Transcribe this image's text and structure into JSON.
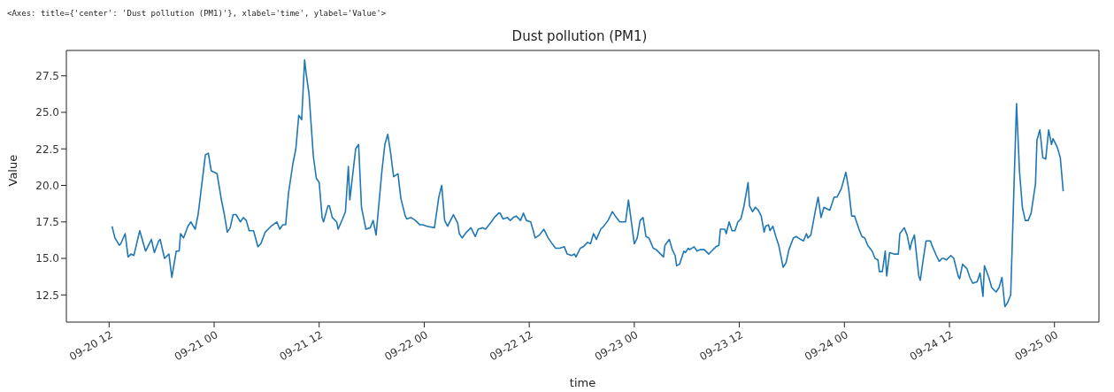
{
  "chart_data": {
    "type": "line",
    "title": "Dust pollution (PM1)",
    "xlabel": "time",
    "ylabel": "Value",
    "annotations": [
      "<Axes: title={'center': 'Dust pollution (PM1)'}, xlabel='time', ylabel='Value'>"
    ],
    "x": [
      "--09-20T12:20",
      "--09-20T12:40",
      "--09-20T13:10",
      "--09-20T13:20",
      "--09-20T13:50",
      "--09-20T14:10",
      "--09-20T14:30",
      "--09-20T14:50",
      "--09-20T15:30",
      "--09-20T16:10",
      "--09-20T16:50",
      "--09-20T17:10",
      "--09-20T17:40",
      "--09-20T17:50",
      "--09-20T18:20",
      "--09-20T18:50",
      "--09-20T19:10",
      "--09-20T19:40",
      "--09-20T20:00",
      "--09-20T20:10",
      "--09-20T20:30",
      "--09-20T21:00",
      "--09-20T21:20",
      "--09-20T21:50",
      "--09-20T22:10",
      "--09-20T22:20",
      "--09-20T23:00",
      "--09-20T23:20",
      "--09-20T23:40",
      "--09-21T00:20",
      "--09-21T00:50",
      "--09-21T01:10",
      "--09-21T01:30",
      "--09-21T01:50",
      "--09-21T02:10",
      "--09-21T02:30",
      "--09-21T03:00",
      "--09-21T03:20",
      "--09-21T03:40",
      "--09-21T04:00",
      "--09-21T04:30",
      "--09-21T05:00",
      "--09-21T05:20",
      "--09-21T05:50",
      "--09-21T06:30",
      "--09-21T07:10",
      "--09-21T07:30",
      "--09-21T07:50",
      "--09-21T08:10",
      "--09-21T08:30",
      "--09-21T09:00",
      "--09-21T09:20",
      "--09-21T09:40",
      "--09-21T10:00",
      "--09-21T10:20",
      "--09-21T10:30",
      "--09-21T10:50",
      "--09-21T11:20",
      "--09-21T11:40",
      "--09-21T12:00",
      "--09-21T12:20",
      "--09-21T12:30",
      "--09-21T13:00",
      "--09-21T13:10",
      "--09-21T13:30",
      "--09-21T14:00",
      "--09-21T14:10",
      "--09-21T14:40",
      "--09-21T15:00",
      "--09-21T15:20",
      "--09-21T15:30",
      "--09-21T16:10",
      "--09-21T16:30",
      "--09-21T16:50",
      "--09-21T17:20",
      "--09-21T17:50",
      "--09-21T18:10",
      "--09-21T18:30",
      "--09-21T19:10",
      "--09-21T19:30",
      "--09-21T19:50",
      "--09-21T20:10",
      "--09-21T20:30",
      "--09-21T21:00",
      "--09-21T21:20",
      "--09-21T21:50",
      "--09-21T22:00",
      "--09-21T22:30",
      "--09-21T23:00",
      "--09-21T23:30",
      "--09-21T23:50",
      "--09-22T00:20",
      "--09-22T01:10",
      "--09-22T01:40",
      "--09-22T02:00",
      "--09-22T02:20",
      "--09-22T02:40",
      "--09-22T03:20",
      "--09-22T03:50",
      "--09-22T04:00",
      "--09-22T04:20",
      "--09-22T04:50",
      "--09-22T05:20",
      "--09-22T05:50",
      "--09-22T06:10",
      "--09-22T06:40",
      "--09-22T07:00",
      "--09-22T07:40",
      "--09-22T08:00",
      "--09-22T08:30",
      "--09-22T08:40",
      "--09-22T09:00",
      "--09-22T09:30",
      "--09-22T09:50",
      "--09-22T10:10",
      "--09-22T10:30",
      "--09-22T11:00",
      "--09-22T11:20",
      "--09-22T11:40",
      "--09-22T12:10",
      "--09-22T12:30",
      "--09-22T12:40",
      "--09-22T13:10",
      "--09-22T13:40",
      "--09-22T14:10",
      "--09-22T14:30",
      "--09-22T15:00",
      "--09-22T15:30",
      "--09-22T16:00",
      "--09-22T16:20",
      "--09-22T16:50",
      "--09-22T17:10",
      "--09-22T17:20",
      "--09-22T17:50",
      "--09-22T18:10",
      "--09-22T18:40",
      "--09-22T19:00",
      "--09-22T19:20",
      "--09-22T19:40",
      "--09-22T20:10",
      "--09-22T20:30",
      "--09-22T21:00",
      "--09-22T21:30",
      "--09-22T21:50",
      "--09-22T22:20",
      "--09-22T22:40",
      "--09-22T23:00",
      "--09-22T23:20",
      "--09-23T00:00",
      "--09-23T00:20",
      "--09-23T00:40",
      "--09-23T01:00",
      "--09-23T01:20",
      "--09-23T01:40",
      "--09-23T02:10",
      "--09-23T02:30",
      "--09-23T03:00",
      "--09-23T03:20",
      "--09-23T03:30",
      "--09-23T04:00",
      "--09-23T04:20",
      "--09-23T04:40",
      "--09-23T04:50",
      "--09-23T05:10",
      "--09-23T05:40",
      "--09-23T05:50",
      "--09-23T06:10",
      "--09-23T06:20",
      "--09-23T06:50",
      "--09-23T07:10",
      "--09-23T07:30",
      "--09-23T08:00",
      "--09-23T08:30",
      "--09-23T08:50",
      "--09-23T09:20",
      "--09-23T09:40",
      "--09-23T09:50",
      "--09-23T10:20",
      "--09-23T10:30",
      "--09-23T10:50",
      "--09-23T11:10",
      "--09-23T11:30",
      "--09-23T11:50",
      "--09-23T12:10",
      "--09-23T12:30",
      "--09-23T13:00",
      "--09-23T13:10",
      "--09-23T13:30",
      "--09-23T13:50",
      "--09-23T14:10",
      "--09-23T14:30",
      "--09-23T14:50",
      "--09-23T15:00",
      "--09-23T15:20",
      "--09-23T15:30",
      "--09-23T15:50",
      "--09-23T16:10",
      "--09-23T16:30",
      "--09-23T17:00",
      "--09-23T17:20",
      "--09-23T17:40",
      "--09-23T18:10",
      "--09-23T18:30",
      "--09-23T19:00",
      "--09-23T19:20",
      "--09-23T19:40",
      "--09-23T19:50",
      "--09-23T20:10",
      "--09-23T20:40",
      "--09-23T21:00",
      "--09-23T21:20",
      "--09-23T21:40",
      "--09-23T22:00",
      "--09-23T22:20",
      "--09-23T22:50",
      "--09-23T23:10",
      "--09-23T23:40",
      "--09-24T00:10",
      "--09-24T00:30",
      "--09-24T00:50",
      "--09-24T01:10",
      "--09-24T01:30",
      "--09-24T01:40",
      "--09-24T02:00",
      "--09-24T02:20",
      "--09-24T02:40",
      "--09-24T03:10",
      "--09-24T03:30",
      "--09-24T03:50",
      "--09-24T04:00",
      "--09-24T04:20",
      "--09-24T04:40",
      "--09-24T04:50",
      "--09-24T05:10",
      "--09-24T05:40",
      "--09-24T06:10",
      "--09-24T06:20",
      "--09-24T06:50",
      "--09-24T07:10",
      "--09-24T07:30",
      "--09-24T07:40",
      "--09-24T08:00",
      "--09-24T08:30",
      "--09-24T08:40",
      "--09-24T09:00",
      "--09-24T09:20",
      "--09-24T09:50",
      "--09-24T10:00",
      "--09-24T10:30",
      "--09-24T10:50",
      "--09-24T11:10",
      "--09-24T11:20",
      "--09-24T11:40",
      "--09-24T12:10",
      "--09-24T12:30",
      "--09-24T13:00",
      "--09-24T13:10",
      "--09-24T13:30",
      "--09-24T14:00",
      "--09-24T14:20",
      "--09-24T14:40",
      "--09-24T15:10",
      "--09-24T15:30",
      "--09-24T15:50",
      "--09-24T16:00",
      "--09-24T16:30",
      "--09-24T16:50",
      "--09-24T17:20",
      "--09-24T17:40",
      "--09-24T18:00",
      "--09-24T18:20",
      "--09-24T18:40",
      "--09-24T19:00",
      "--09-24T19:40",
      "--09-24T20:00",
      "--09-24T20:20",
      "--09-24T20:40",
      "--09-24T21:00",
      "--09-24T21:20",
      "--09-24T21:50",
      "--09-24T22:00",
      "--09-24T22:20",
      "--09-24T22:40",
      "--09-24T23:00",
      "--09-24T23:20",
      "--09-24T23:40",
      "--09-24T23:50",
      "--09-25T00:20",
      "--09-25T00:40",
      "--09-25T01:00"
    ],
    "series": [
      {
        "color": "#1f77b4",
        "values": [
          17.2,
          16.4,
          15.9,
          16.0,
          16.7,
          15.1,
          15.3,
          15.2,
          16.9,
          15.5,
          16.3,
          15.4,
          16.2,
          16.3,
          15.0,
          15.3,
          13.7,
          15.5,
          15.5,
          16.7,
          16.4,
          17.2,
          17.5,
          17.0,
          18.0,
          18.8,
          22.1,
          22.2,
          21.0,
          20.8,
          19.0,
          18.0,
          16.8,
          17.1,
          18.0,
          18.0,
          17.5,
          17.8,
          17.6,
          16.9,
          16.9,
          15.8,
          16.0,
          16.8,
          17.2,
          17.5,
          17.0,
          17.3,
          17.3,
          19.5,
          21.5,
          22.5,
          24.8,
          24.5,
          28.6,
          27.7,
          26.3,
          22.0,
          20.5,
          20.2,
          17.8,
          17.5,
          18.6,
          18.6,
          17.8,
          17.5,
          17.0,
          17.7,
          18.2,
          21.3,
          19.0,
          22.5,
          22.8,
          18.5,
          17.0,
          17.1,
          17.6,
          16.6,
          21.0,
          22.8,
          23.5,
          22.2,
          20.6,
          20.8,
          19.1,
          17.9,
          17.7,
          17.8,
          17.6,
          17.3,
          17.3,
          17.2,
          17.1,
          19.2,
          20.0,
          17.6,
          17.2,
          18.0,
          17.4,
          16.7,
          16.4,
          16.8,
          17.1,
          16.5,
          17.0,
          17.1,
          17.0,
          17.5,
          17.8,
          18.1,
          18.1,
          17.7,
          17.8,
          17.6,
          17.8,
          17.9,
          17.6,
          18.1,
          17.6,
          17.5,
          16.8,
          16.4,
          16.6,
          17.0,
          16.4,
          16.1,
          15.7,
          15.7,
          15.8,
          15.3,
          15.2,
          15.3,
          15.1,
          15.7,
          15.8,
          16.1,
          16.0,
          16.7,
          16.3,
          17.0,
          17.2,
          17.6,
          18.2,
          17.9,
          17.5,
          17.5,
          17.5,
          19.0,
          16.0,
          16.4,
          17.6,
          17.8,
          16.5,
          16.4,
          15.7,
          15.6,
          15.3,
          15.1,
          15.9,
          16.3,
          15.6,
          15.2,
          14.5,
          14.6,
          15.5,
          15.4,
          15.7,
          15.6,
          15.8,
          15.5,
          15.6,
          15.6,
          15.3,
          15.5,
          15.8,
          15.9,
          17.0,
          17.0,
          16.7,
          17.5,
          16.9,
          16.9,
          17.5,
          17.7,
          18.5,
          20.2,
          18.6,
          18.2,
          18.5,
          18.3,
          17.9,
          16.8,
          17.2,
          17.3,
          16.9,
          17.2,
          16.5,
          15.9,
          14.4,
          14.7,
          15.6,
          16.4,
          16.5,
          16.3,
          16.2,
          16.7,
          16.4,
          16.6,
          18.2,
          19.2,
          17.8,
          18.5,
          18.4,
          18.3,
          19.2,
          19.2,
          19.8,
          20.9,
          19.7,
          17.9,
          17.9,
          17.3,
          17.0,
          16.5,
          16.4,
          15.9,
          15.5,
          15.0,
          14.9,
          14.1,
          14.1,
          15.5,
          13.8,
          15.4,
          15.3,
          15.3,
          16.7,
          17.1,
          16.6,
          15.6,
          16.1,
          16.6,
          13.8,
          13.5,
          14.9,
          16.2,
          16.2,
          15.9,
          15.2,
          14.8,
          15.0,
          15.0,
          14.9,
          15.2,
          15.0,
          13.8,
          13.6,
          14.6,
          14.3,
          13.7,
          13.3,
          13.4,
          14.0,
          12.4,
          14.5,
          13.7,
          13.0,
          12.7,
          13.0,
          13.7,
          11.7,
          12.0,
          12.5,
          25.6,
          21.0,
          18.5,
          17.6,
          17.6,
          18.1,
          20.1,
          23.1,
          23.8,
          21.9,
          21.8,
          23.8,
          22.8,
          23.2,
          22.6,
          21.9,
          19.6
        ]
      }
    ],
    "xlim": [
      "--09-20T07:07",
      "--09-25T05:05"
    ],
    "xticks": [
      {
        "value": "--09-20T12:00",
        "label": "09-20 12"
      },
      {
        "value": "--09-21T00:00",
        "label": "09-21 00"
      },
      {
        "value": "--09-21T12:00",
        "label": "09-21 12"
      },
      {
        "value": "--09-22T00:00",
        "label": "09-22 00"
      },
      {
        "value": "--09-22T12:00",
        "label": "09-22 12"
      },
      {
        "value": "--09-23T00:00",
        "label": "09-23 00"
      },
      {
        "value": "--09-23T12:00",
        "label": "09-23 12"
      },
      {
        "value": "--09-24T00:00",
        "label": "09-24 00"
      },
      {
        "value": "--09-24T12:00",
        "label": "09-24 12"
      },
      {
        "value": "--09-25T00:00",
        "label": "09-25 00"
      }
    ],
    "ylim": [
      10.64,
      29.24
    ],
    "yticks": [
      {
        "value": 12.5,
        "label": "12.5"
      },
      {
        "value": 15,
        "label": "15.0"
      },
      {
        "value": 17.5,
        "label": "17.5"
      },
      {
        "value": 20,
        "label": "20.0"
      },
      {
        "value": 22.5,
        "label": "22.5"
      },
      {
        "value": 25,
        "label": "25.0"
      },
      {
        "value": 27.5,
        "label": "27.5"
      }
    ],
    "grid": false,
    "legend": false
  }
}
